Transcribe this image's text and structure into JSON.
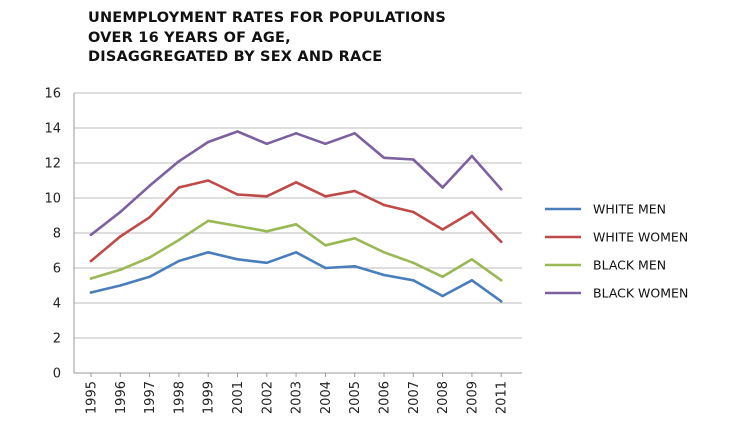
{
  "chart_data": {
    "type": "line",
    "title_lines": [
      "UNEMPLOYMENT RATES FOR POPULATIONS",
      "OVER 16 YEARS OF AGE,",
      "DISAGGREGATED BY SEX AND RACE"
    ],
    "xlabel": "",
    "ylabel": "",
    "x": [
      "1995",
      "1996",
      "1997",
      "1998",
      "1999",
      "2001",
      "2002",
      "2003",
      "2004",
      "2005",
      "2006",
      "2007",
      "2008",
      "2009",
      "2011"
    ],
    "ylim": [
      0,
      16
    ],
    "yticks": [
      0,
      2,
      4,
      6,
      8,
      10,
      12,
      14,
      16
    ],
    "grid": true,
    "legend_position": "right",
    "series": [
      {
        "name": "WHITE MEN",
        "color": "#4a7ebb",
        "values": [
          4.6,
          5.0,
          5.5,
          6.4,
          6.9,
          6.5,
          6.3,
          6.9,
          6.0,
          6.1,
          5.6,
          5.3,
          4.4,
          5.3,
          4.1
        ]
      },
      {
        "name": "WHITE WOMEN",
        "color": "#be4b48",
        "values": [
          6.4,
          7.8,
          8.9,
          10.6,
          11.0,
          10.2,
          10.1,
          10.9,
          10.1,
          10.4,
          9.6,
          9.2,
          8.2,
          9.2,
          7.5
        ]
      },
      {
        "name": "BLACK MEN",
        "color": "#98b954",
        "values": [
          5.4,
          5.9,
          6.6,
          7.6,
          8.7,
          8.4,
          8.1,
          8.5,
          7.3,
          7.7,
          6.9,
          6.3,
          5.5,
          6.5,
          5.3
        ]
      },
      {
        "name": "BLACK WOMEN",
        "color": "#7d60a0",
        "values": [
          7.9,
          9.2,
          10.7,
          12.1,
          13.2,
          13.8,
          13.1,
          13.7,
          13.1,
          13.7,
          12.3,
          12.2,
          10.6,
          12.4,
          10.5
        ]
      }
    ]
  }
}
